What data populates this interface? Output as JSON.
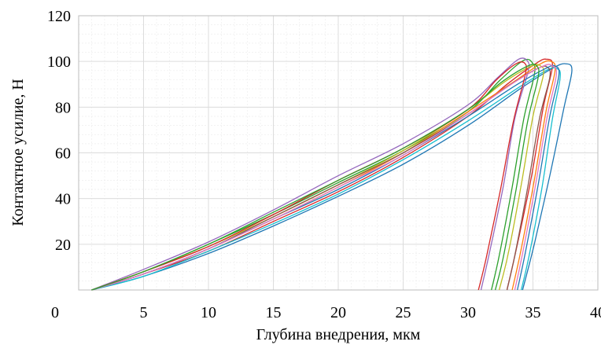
{
  "chart_data": {
    "type": "line",
    "xlabel": "Глубина внедрения, мкм",
    "ylabel": "Контактное усилие, Н",
    "xlim": [
      0,
      40
    ],
    "ylim": [
      0,
      120
    ],
    "x_ticks": [
      "0",
      "5",
      "10",
      "15",
      "20",
      "25",
      "30",
      "35",
      "40"
    ],
    "y_ticks": [
      "20",
      "40",
      "60",
      "80",
      "100",
      "120"
    ],
    "grid": true,
    "legend": "none",
    "series": [
      {
        "color": "#1f77b4",
        "values": [
          [
            1,
            0
          ],
          [
            5,
            6
          ],
          [
            10,
            16
          ],
          [
            15,
            28
          ],
          [
            20,
            41
          ],
          [
            25,
            55
          ],
          [
            30,
            72
          ],
          [
            34,
            88
          ],
          [
            36.5,
            97
          ],
          [
            37.5,
            99
          ],
          [
            38,
            96
          ],
          [
            37.4,
            80
          ],
          [
            36.3,
            50
          ],
          [
            35.1,
            20
          ],
          [
            34.2,
            0
          ]
        ]
      },
      {
        "color": "#d62728",
        "values": [
          [
            1,
            0
          ],
          [
            5,
            7
          ],
          [
            10,
            17
          ],
          [
            15,
            30
          ],
          [
            20,
            43
          ],
          [
            25,
            58
          ],
          [
            30,
            76
          ],
          [
            33,
            90
          ],
          [
            35.2,
            99
          ],
          [
            36,
            101
          ],
          [
            36.5,
            98
          ],
          [
            35.8,
            80
          ],
          [
            34.9,
            50
          ],
          [
            33.8,
            20
          ],
          [
            33,
            0
          ]
        ]
      },
      {
        "color": "#2ca02c",
        "values": [
          [
            1,
            0
          ],
          [
            5,
            8
          ],
          [
            10,
            20
          ],
          [
            15,
            33
          ],
          [
            20,
            47
          ],
          [
            25,
            61
          ],
          [
            30,
            78
          ],
          [
            32.5,
            92
          ],
          [
            34.3,
            100.5
          ],
          [
            35,
            99
          ],
          [
            35.1,
            94
          ],
          [
            34.3,
            75
          ],
          [
            33.4,
            45
          ],
          [
            32.4,
            15
          ],
          [
            31.8,
            0
          ]
        ]
      },
      {
        "color": "#9467bd",
        "values": [
          [
            1,
            0
          ],
          [
            5,
            9
          ],
          [
            10,
            21
          ],
          [
            15,
            35
          ],
          [
            20,
            50
          ],
          [
            25,
            64
          ],
          [
            30,
            81
          ],
          [
            32.3,
            93
          ],
          [
            33.9,
            101
          ],
          [
            34.6,
            100
          ],
          [
            34.6,
            95
          ],
          [
            33.6,
            75
          ],
          [
            32.7,
            45
          ],
          [
            31.6,
            15
          ],
          [
            31,
            0
          ]
        ]
      },
      {
        "color": "#ff7f0e",
        "values": [
          [
            1,
            0
          ],
          [
            5,
            7
          ],
          [
            10,
            18
          ],
          [
            15,
            31
          ],
          [
            20,
            45
          ],
          [
            25,
            60
          ],
          [
            30,
            78
          ],
          [
            33.5,
            91
          ],
          [
            35.6,
            99
          ],
          [
            36.4,
            100
          ],
          [
            36.7,
            96
          ],
          [
            36,
            78
          ],
          [
            35.1,
            48
          ],
          [
            34.1,
            18
          ],
          [
            33.4,
            0
          ]
        ]
      },
      {
        "color": "#17becf",
        "values": [
          [
            1,
            0
          ],
          [
            5,
            6
          ],
          [
            10,
            17
          ],
          [
            15,
            29
          ],
          [
            20,
            42
          ],
          [
            25,
            57
          ],
          [
            30,
            74
          ],
          [
            34,
            89
          ],
          [
            36,
            96
          ],
          [
            36.8,
            97
          ],
          [
            37.1,
            93
          ],
          [
            36.5,
            75
          ],
          [
            35.7,
            45
          ],
          [
            34.7,
            15
          ],
          [
            34.1,
            0
          ]
        ]
      },
      {
        "color": "#bcbd22",
        "values": [
          [
            1,
            0
          ],
          [
            5,
            8
          ],
          [
            10,
            19
          ],
          [
            15,
            32
          ],
          [
            20,
            46
          ],
          [
            25,
            61
          ],
          [
            30,
            79
          ],
          [
            32.8,
            91
          ],
          [
            34.9,
            98
          ],
          [
            35.6,
            98
          ],
          [
            35.8,
            94
          ],
          [
            35,
            76
          ],
          [
            34.1,
            46
          ],
          [
            33.1,
            16
          ],
          [
            32.4,
            0
          ]
        ]
      },
      {
        "color": "#8c564b",
        "values": [
          [
            1,
            0
          ],
          [
            5,
            7
          ],
          [
            10,
            18
          ],
          [
            15,
            32
          ],
          [
            20,
            46
          ],
          [
            25,
            60
          ],
          [
            30,
            77
          ],
          [
            33.3,
            90
          ],
          [
            35.4,
            97
          ],
          [
            36.1,
            97.5
          ],
          [
            36.3,
            93
          ],
          [
            35.5,
            75
          ],
          [
            34.6,
            45
          ],
          [
            33.6,
            15
          ],
          [
            33,
            0
          ]
        ]
      },
      {
        "color": "#1f77b4",
        "values": [
          [
            1,
            0
          ],
          [
            5,
            7
          ],
          [
            10,
            18
          ],
          [
            15,
            31
          ],
          [
            20,
            44
          ],
          [
            25,
            59
          ],
          [
            30,
            76
          ],
          [
            33.8,
            90
          ],
          [
            36,
            97
          ],
          [
            36.7,
            98
          ],
          [
            37,
            94
          ],
          [
            36.3,
            76
          ],
          [
            35.4,
            46
          ],
          [
            34.4,
            16
          ],
          [
            33.8,
            0
          ]
        ]
      },
      {
        "color": "#d62728",
        "values": [
          [
            1,
            0
          ],
          [
            5,
            8
          ],
          [
            10,
            19
          ],
          [
            15,
            33
          ],
          [
            20,
            48
          ],
          [
            25,
            62
          ],
          [
            30,
            79
          ],
          [
            32.2,
            92
          ],
          [
            33.7,
            99
          ],
          [
            34.4,
            99
          ],
          [
            34.4,
            94
          ],
          [
            33.5,
            74
          ],
          [
            32.5,
            44
          ],
          [
            31.4,
            14
          ],
          [
            30.8,
            0
          ]
        ]
      },
      {
        "color": "#e377c2",
        "values": [
          [
            1,
            0
          ],
          [
            5,
            7
          ],
          [
            10,
            18
          ],
          [
            15,
            31
          ],
          [
            20,
            45
          ],
          [
            25,
            59
          ],
          [
            30,
            77
          ],
          [
            33.6,
            91
          ],
          [
            35.8,
            98
          ],
          [
            36.5,
            98
          ],
          [
            36.8,
            94
          ],
          [
            36.1,
            76
          ],
          [
            35.2,
            46
          ],
          [
            34.2,
            16
          ],
          [
            33.6,
            0
          ]
        ]
      },
      {
        "color": "#2ca02c",
        "values": [
          [
            1,
            0
          ],
          [
            5,
            8
          ],
          [
            10,
            20
          ],
          [
            15,
            34
          ],
          [
            20,
            48
          ],
          [
            25,
            62
          ],
          [
            30,
            79
          ],
          [
            32.6,
            91
          ],
          [
            34.6,
            98
          ],
          [
            35.3,
            98
          ],
          [
            35.4,
            93
          ],
          [
            34.6,
            74
          ],
          [
            33.7,
            44
          ],
          [
            32.7,
            14
          ],
          [
            32.1,
            0
          ]
        ]
      }
    ]
  }
}
